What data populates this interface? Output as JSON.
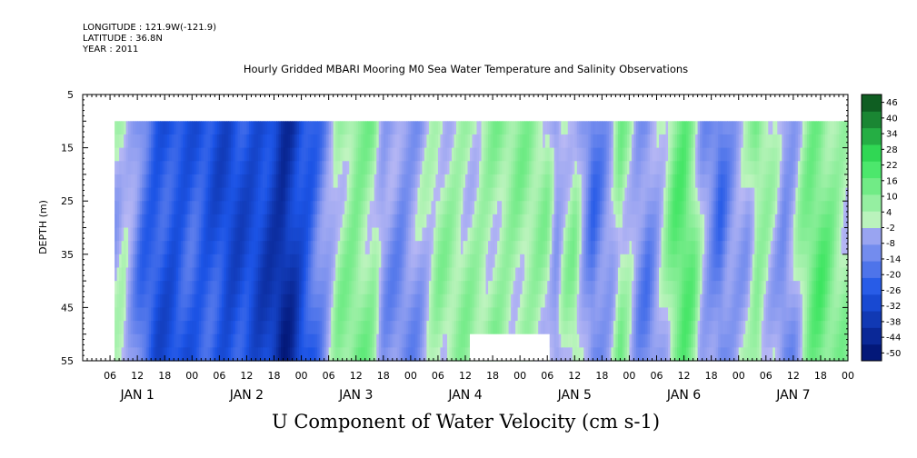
{
  "header": {
    "longitude": "LONGITUDE : 121.9W(-121.9)",
    "latitude": "LATITUDE : 36.8N",
    "year": "YEAR : 2011"
  },
  "chart_data": {
    "type": "heatmap",
    "title": "Hourly Gridded MBARI Mooring M0 Sea Water Temperature and Salinity Observations",
    "xlabel": "U Component of Water Velocity (cm s-1)",
    "ylabel": "DEPTH (m)",
    "ylim": [
      55,
      5
    ],
    "y_ticks": [
      5,
      15,
      25,
      35,
      45,
      55
    ],
    "x_range_hours": [
      0,
      168
    ],
    "x_ticks_hours": [
      {
        "h": 6,
        "label": "06"
      },
      {
        "h": 12,
        "label": "12"
      },
      {
        "h": 18,
        "label": "18"
      },
      {
        "h": 24,
        "label": "00"
      },
      {
        "h": 30,
        "label": "06"
      },
      {
        "h": 36,
        "label": "12"
      },
      {
        "h": 42,
        "label": "18"
      },
      {
        "h": 48,
        "label": "00"
      },
      {
        "h": 54,
        "label": "06"
      },
      {
        "h": 60,
        "label": "12"
      },
      {
        "h": 66,
        "label": "18"
      },
      {
        "h": 72,
        "label": "00"
      },
      {
        "h": 78,
        "label": "06"
      },
      {
        "h": 84,
        "label": "12"
      },
      {
        "h": 90,
        "label": "18"
      },
      {
        "h": 96,
        "label": "00"
      },
      {
        "h": 102,
        "label": "06"
      },
      {
        "h": 108,
        "label": "12"
      },
      {
        "h": 114,
        "label": "18"
      },
      {
        "h": 120,
        "label": "00"
      },
      {
        "h": 126,
        "label": "06"
      },
      {
        "h": 132,
        "label": "12"
      },
      {
        "h": 138,
        "label": "18"
      },
      {
        "h": 144,
        "label": "00"
      },
      {
        "h": 150,
        "label": "06"
      },
      {
        "h": 156,
        "label": "12"
      },
      {
        "h": 162,
        "label": "18"
      },
      {
        "h": 168,
        "label": "00"
      }
    ],
    "day_labels": [
      {
        "h": 12,
        "label": "JAN  1"
      },
      {
        "h": 36,
        "label": "JAN  2"
      },
      {
        "h": 60,
        "label": "JAN  3"
      },
      {
        "h": 84,
        "label": "JAN  4"
      },
      {
        "h": 108,
        "label": "JAN  5"
      },
      {
        "h": 132,
        "label": "JAN  6"
      },
      {
        "h": 156,
        "label": "JAN  7"
      }
    ],
    "data_extent": {
      "depth_top": 10,
      "depth_bottom": 55,
      "hour_start": 7,
      "hour_end": 168
    },
    "colorbar": {
      "levels": [
        -50,
        -44,
        -38,
        -32,
        -26,
        -20,
        -14,
        -8,
        -2,
        4,
        10,
        16,
        22,
        28,
        34,
        40,
        46
      ],
      "tick_labels": [
        "46",
        "40",
        "34",
        "28",
        "22",
        "16",
        "10",
        "4",
        "-2",
        "-8",
        "-14",
        "-20",
        "-26",
        "-32",
        "-38",
        "-44",
        "-50"
      ]
    },
    "u_profile": [
      {
        "h": 7,
        "u": -2
      },
      {
        "h": 9,
        "u": 2
      },
      {
        "h": 11,
        "u": -6
      },
      {
        "h": 13,
        "u": -16
      },
      {
        "h": 16,
        "u": -24
      },
      {
        "h": 20,
        "u": -26
      },
      {
        "h": 24,
        "u": -22
      },
      {
        "h": 28,
        "u": -24
      },
      {
        "h": 32,
        "u": -28
      },
      {
        "h": 36,
        "u": -26
      },
      {
        "h": 40,
        "u": -30
      },
      {
        "h": 42,
        "u": -34
      },
      {
        "h": 44,
        "u": -40
      },
      {
        "h": 46,
        "u": -36
      },
      {
        "h": 48,
        "u": -28
      },
      {
        "h": 50,
        "u": -22
      },
      {
        "h": 52,
        "u": -14
      },
      {
        "h": 54,
        "u": -6
      },
      {
        "h": 56,
        "u": 4
      },
      {
        "h": 60,
        "u": 10
      },
      {
        "h": 64,
        "u": 6
      },
      {
        "h": 66,
        "u": -6
      },
      {
        "h": 70,
        "u": -10
      },
      {
        "h": 74,
        "u": -6
      },
      {
        "h": 78,
        "u": 4
      },
      {
        "h": 86,
        "u": 4
      },
      {
        "h": 90,
        "u": 6
      },
      {
        "h": 96,
        "u": 6
      },
      {
        "h": 102,
        "u": 4
      },
      {
        "h": 104,
        "u": -8
      },
      {
        "h": 106,
        "u": 2
      },
      {
        "h": 108,
        "u": 6
      },
      {
        "h": 110,
        "u": -6
      },
      {
        "h": 112,
        "u": -16
      },
      {
        "h": 114,
        "u": -10
      },
      {
        "h": 116,
        "u": -4
      },
      {
        "h": 118,
        "u": 8
      },
      {
        "h": 120,
        "u": 2
      },
      {
        "h": 122,
        "u": -8
      },
      {
        "h": 124,
        "u": -12
      },
      {
        "h": 126,
        "u": -6
      },
      {
        "h": 128,
        "u": 2
      },
      {
        "h": 130,
        "u": 12
      },
      {
        "h": 132,
        "u": 16
      },
      {
        "h": 134,
        "u": 10
      },
      {
        "h": 136,
        "u": -4
      },
      {
        "h": 138,
        "u": -10
      },
      {
        "h": 140,
        "u": -16
      },
      {
        "h": 142,
        "u": -8
      },
      {
        "h": 144,
        "u": -4
      },
      {
        "h": 146,
        "u": -2
      },
      {
        "h": 148,
        "u": 8
      },
      {
        "h": 150,
        "u": 4
      },
      {
        "h": 152,
        "u": -2
      },
      {
        "h": 154,
        "u": -10
      },
      {
        "h": 156,
        "u": -6
      },
      {
        "h": 158,
        "u": 4
      },
      {
        "h": 160,
        "u": 12
      },
      {
        "h": 162,
        "u": 14
      },
      {
        "h": 164,
        "u": 10
      },
      {
        "h": 166,
        "u": 6
      },
      {
        "h": 168,
        "u": 4
      }
    ],
    "gaps": [
      {
        "h0": 85,
        "h1": 102.5,
        "depth_top": 50,
        "depth_bottom": 55
      }
    ],
    "colors": {
      "neg_lo": "#00106a",
      "neg_mid": "#1c54e6",
      "neg_hi": "#b8b8f4",
      "pos_lo": "#c0f4c0",
      "pos_mid": "#34e45a",
      "pos_hi": "#0a4a1a",
      "blank": "#ffffff"
    }
  }
}
